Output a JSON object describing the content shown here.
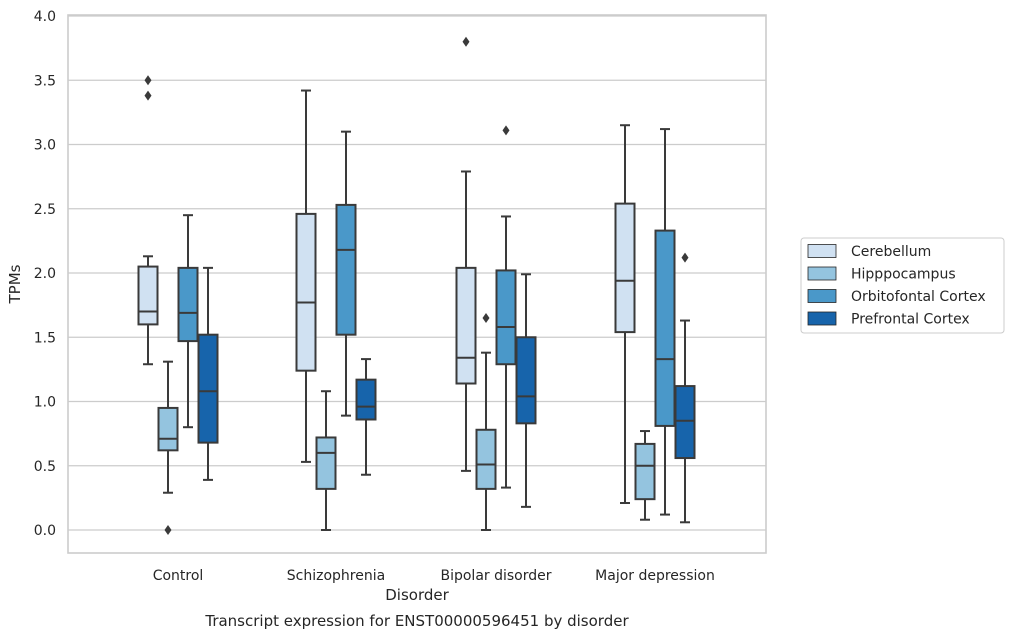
{
  "chart_data": {
    "type": "box",
    "xlabel": "Disorder",
    "ylabel": "TPMs",
    "caption": "Transcript expression for ENST00000596451 by disorder",
    "ylim": [
      -0.18,
      4.0
    ],
    "yticks": [
      "0.0",
      "0.5",
      "1.0",
      "1.5",
      "2.0",
      "2.5",
      "3.0",
      "3.5",
      "4.0"
    ],
    "ytick_values": [
      0,
      0.5,
      1.0,
      1.5,
      2.0,
      2.5,
      3.0,
      3.5,
      4.0
    ],
    "grid": "horizontal",
    "legend_placement": "right",
    "categories": [
      "Control",
      "Schizophrenia",
      "Bipolar disorder",
      "Major depression"
    ],
    "series": [
      {
        "name": "Cerebellum",
        "color": "#d0e1f2",
        "boxes": [
          {
            "whisker_low": 1.29,
            "q1": 1.6,
            "median": 1.7,
            "q3": 2.05,
            "whisker_high": 2.13,
            "outliers": [
              3.38,
              3.5
            ]
          },
          {
            "whisker_low": 0.53,
            "q1": 1.24,
            "median": 1.77,
            "q3": 2.46,
            "whisker_high": 3.42,
            "outliers": []
          },
          {
            "whisker_low": 0.46,
            "q1": 1.14,
            "median": 1.34,
            "q3": 2.04,
            "whisker_high": 2.79,
            "outliers": [
              3.8
            ]
          },
          {
            "whisker_low": 0.21,
            "q1": 1.54,
            "median": 1.94,
            "q3": 2.54,
            "whisker_high": 3.15,
            "outliers": []
          }
        ]
      },
      {
        "name": "Hipppocampus",
        "color": "#94c4df",
        "boxes": [
          {
            "whisker_low": 0.29,
            "q1": 0.62,
            "median": 0.71,
            "q3": 0.95,
            "whisker_high": 1.31,
            "outliers": [
              0.0
            ]
          },
          {
            "whisker_low": 0.0,
            "q1": 0.32,
            "median": 0.6,
            "q3": 0.72,
            "whisker_high": 1.08,
            "outliers": []
          },
          {
            "whisker_low": 0.0,
            "q1": 0.32,
            "median": 0.51,
            "q3": 0.78,
            "whisker_high": 1.38,
            "outliers": [
              1.65
            ]
          },
          {
            "whisker_low": 0.08,
            "q1": 0.24,
            "median": 0.5,
            "q3": 0.67,
            "whisker_high": 0.77,
            "outliers": []
          }
        ]
      },
      {
        "name": "Orbitofontal Cortex",
        "color": "#4a98c9",
        "boxes": [
          {
            "whisker_low": 0.8,
            "q1": 1.47,
            "median": 1.69,
            "q3": 2.04,
            "whisker_high": 2.45,
            "outliers": []
          },
          {
            "whisker_low": 0.89,
            "q1": 1.52,
            "median": 2.18,
            "q3": 2.53,
            "whisker_high": 3.1,
            "outliers": []
          },
          {
            "whisker_low": 0.33,
            "q1": 1.29,
            "median": 1.58,
            "q3": 2.02,
            "whisker_high": 2.44,
            "outliers": [
              3.11
            ]
          },
          {
            "whisker_low": 0.12,
            "q1": 0.81,
            "median": 1.33,
            "q3": 2.33,
            "whisker_high": 3.12,
            "outliers": []
          }
        ]
      },
      {
        "name": "Prefrontal Cortex",
        "color": "#1764ab",
        "boxes": [
          {
            "whisker_low": 0.39,
            "q1": 0.68,
            "median": 1.08,
            "q3": 1.52,
            "whisker_high": 2.04,
            "outliers": []
          },
          {
            "whisker_low": 0.43,
            "q1": 0.86,
            "median": 0.96,
            "q3": 1.17,
            "whisker_high": 1.33,
            "outliers": []
          },
          {
            "whisker_low": 0.18,
            "q1": 0.83,
            "median": 1.04,
            "q3": 1.5,
            "whisker_high": 1.99,
            "outliers": []
          },
          {
            "whisker_low": 0.06,
            "q1": 0.56,
            "median": 0.85,
            "q3": 1.12,
            "whisker_high": 1.63,
            "outliers": [
              2.12
            ]
          }
        ]
      }
    ]
  }
}
